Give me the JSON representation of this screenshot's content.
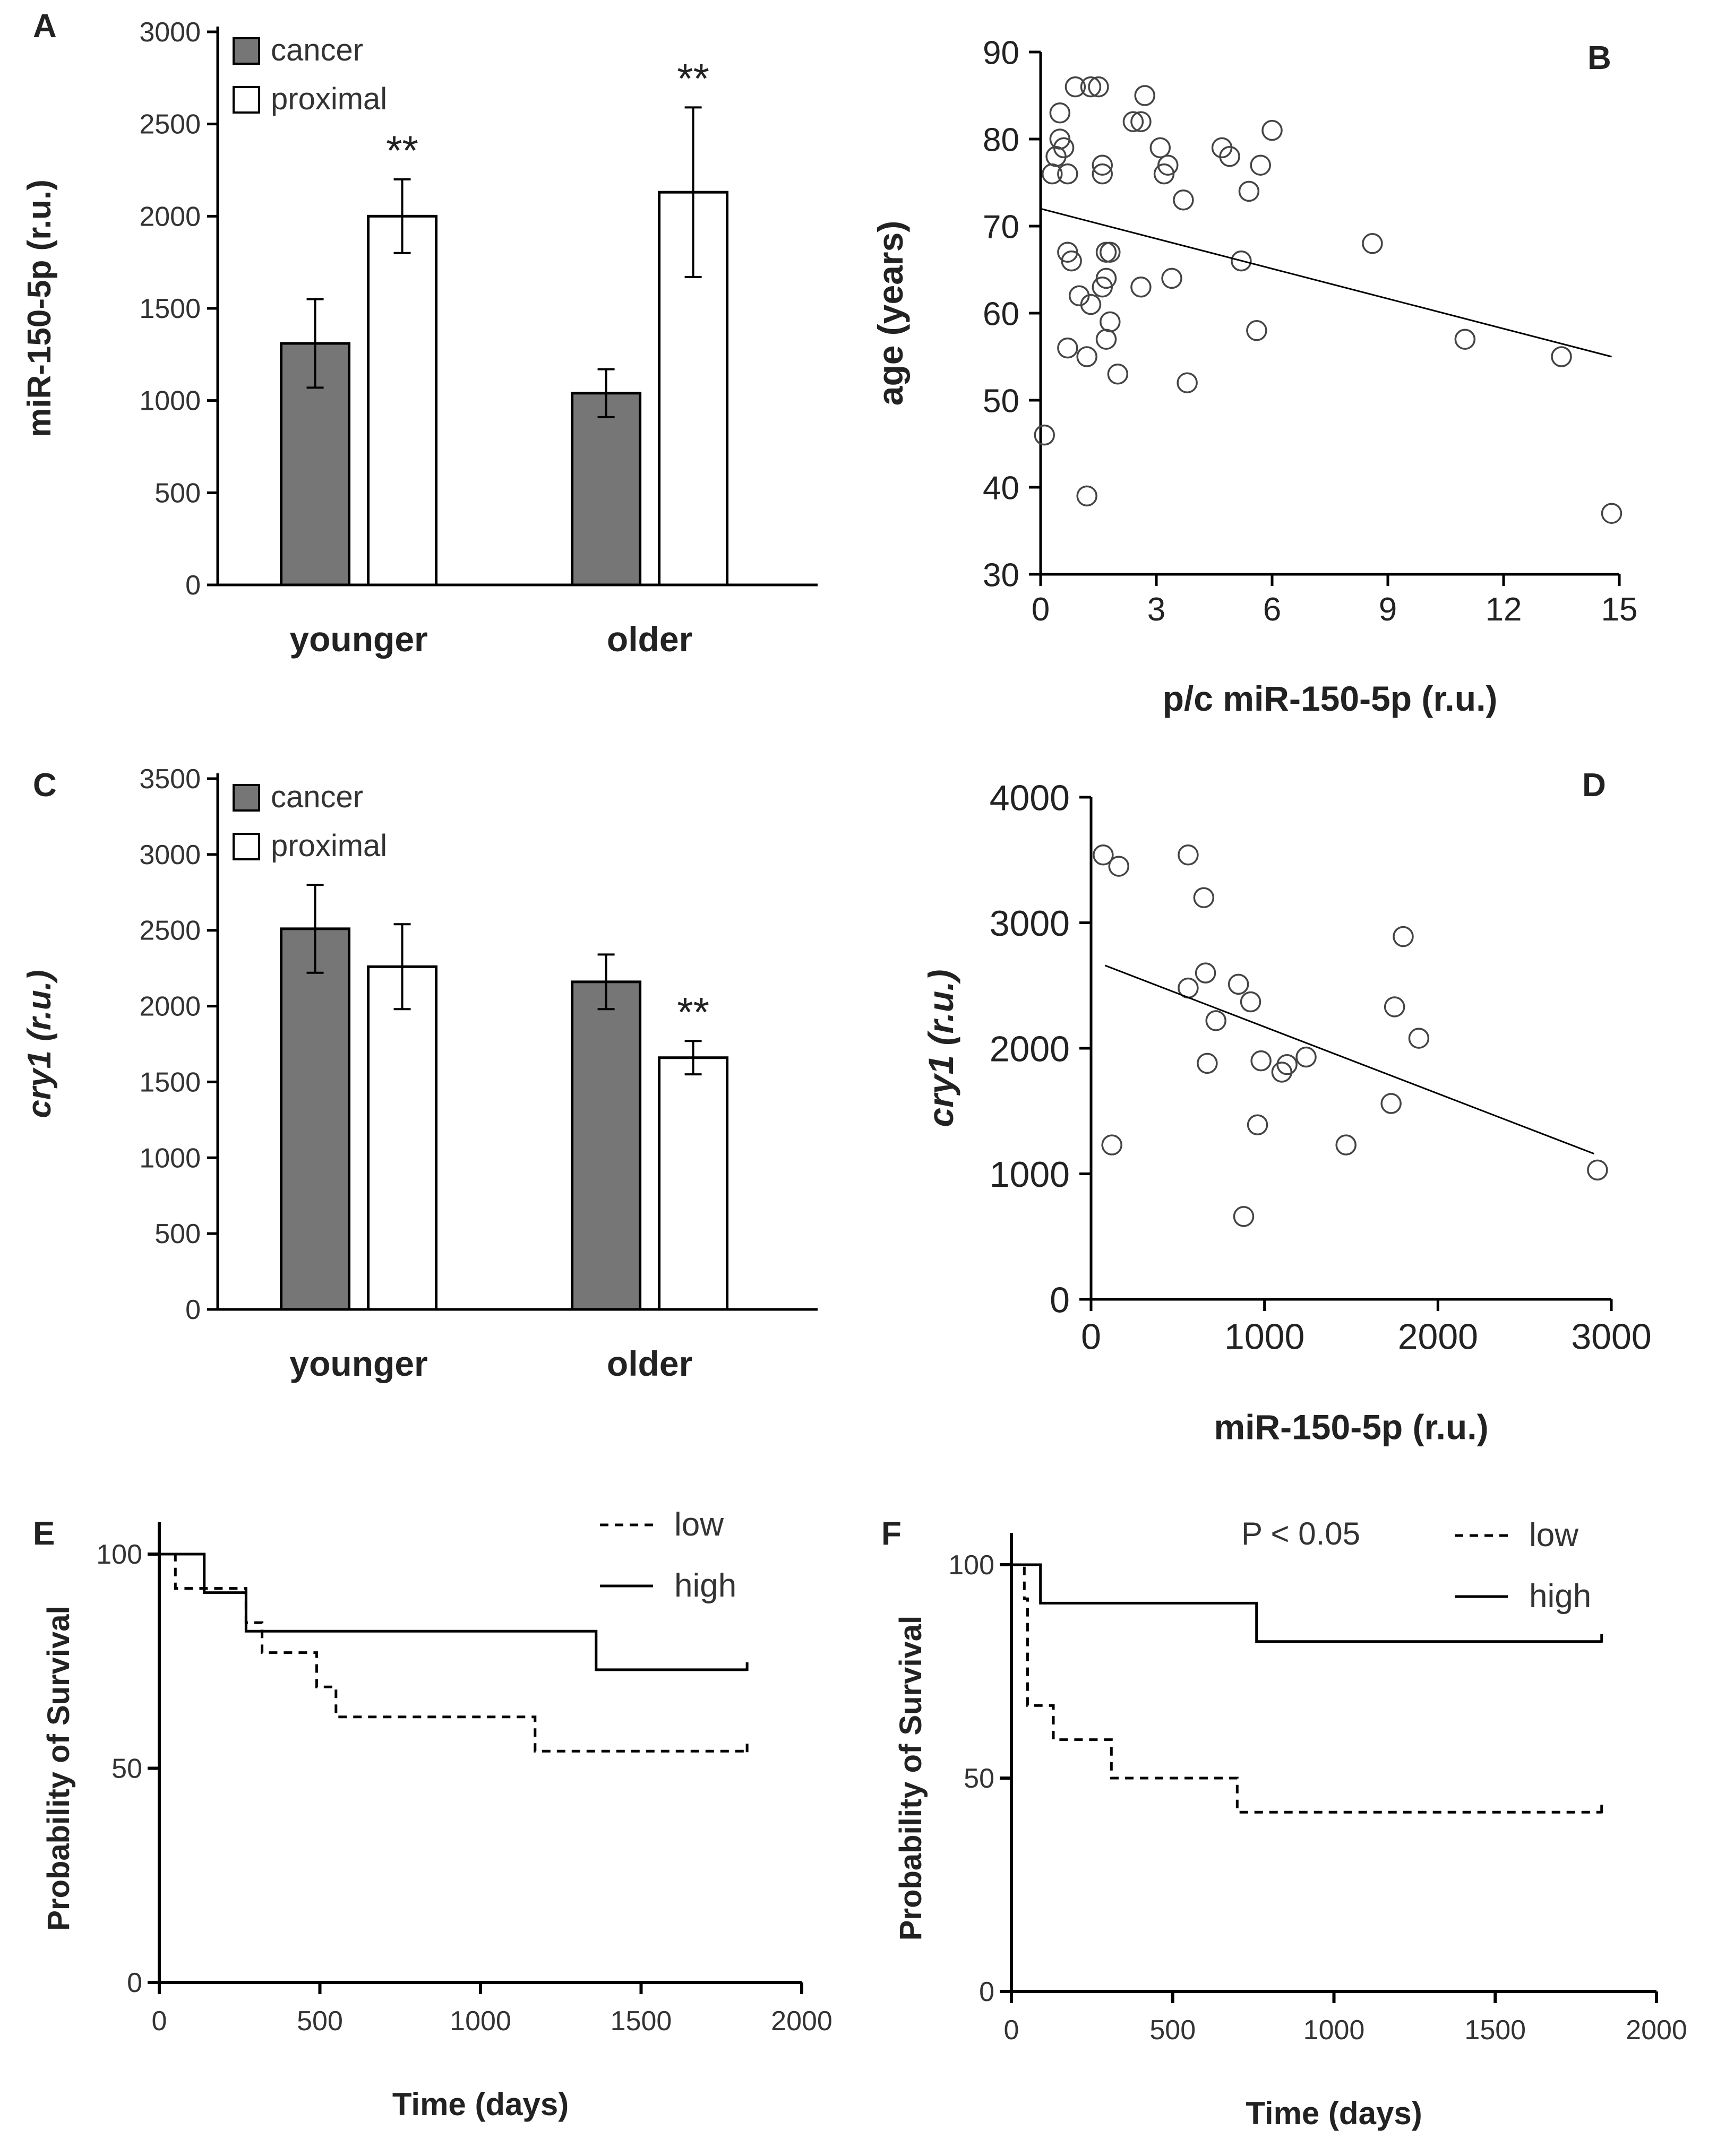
{
  "chart_data": [
    {
      "panel": "A",
      "type": "bar",
      "categories": [
        "younger",
        "older"
      ],
      "series": [
        {
          "name": "cancer",
          "color": "#767676",
          "values": [
            1310,
            1040
          ],
          "errors": [
            240,
            130
          ]
        },
        {
          "name": "proximal",
          "color": "#ffffff",
          "values": [
            2000,
            2130
          ],
          "errors": [
            200,
            460
          ]
        }
      ],
      "annotations": [
        {
          "category": "younger",
          "series": "proximal",
          "text": "**"
        },
        {
          "category": "older",
          "series": "proximal",
          "text": "**"
        }
      ],
      "ylabel": "miR-150-5p (r.u.)",
      "ylim": [
        0,
        3000
      ],
      "yticks": [
        0,
        500,
        1000,
        1500,
        2000,
        2500,
        3000
      ],
      "legend": "top-left"
    },
    {
      "panel": "B",
      "type": "scatter",
      "xlabel": "p/c miR-150-5p (r.u.)",
      "ylabel": "age  (years)",
      "xlim": [
        0,
        15
      ],
      "ylim": [
        30,
        90
      ],
      "xticks": [
        0,
        3,
        6,
        9,
        12,
        15
      ],
      "yticks": [
        30,
        40,
        50,
        60,
        70,
        80,
        90
      ],
      "points": [
        [
          0.9,
          86
        ],
        [
          1.3,
          86
        ],
        [
          1.5,
          86
        ],
        [
          0.5,
          83
        ],
        [
          2.7,
          85
        ],
        [
          0.5,
          80
        ],
        [
          0.6,
          79
        ],
        [
          0.4,
          78
        ],
        [
          0.3,
          76
        ],
        [
          0.7,
          76
        ],
        [
          1.6,
          77
        ],
        [
          1.6,
          76
        ],
        [
          2.4,
          82
        ],
        [
          2.6,
          82
        ],
        [
          3.1,
          79
        ],
        [
          3.3,
          77
        ],
        [
          3.2,
          76
        ],
        [
          3.7,
          73
        ],
        [
          4.7,
          79
        ],
        [
          4.9,
          78
        ],
        [
          5.4,
          74
        ],
        [
          5.7,
          77
        ],
        [
          6.0,
          81
        ],
        [
          0.7,
          67
        ],
        [
          0.8,
          66
        ],
        [
          1.7,
          67
        ],
        [
          1.8,
          67
        ],
        [
          1.7,
          64
        ],
        [
          1.6,
          63
        ],
        [
          2.6,
          63
        ],
        [
          3.4,
          64
        ],
        [
          5.2,
          66
        ],
        [
          1.0,
          62
        ],
        [
          1.3,
          61
        ],
        [
          1.8,
          59
        ],
        [
          1.7,
          57
        ],
        [
          0.7,
          56
        ],
        [
          1.2,
          55
        ],
        [
          2.0,
          53
        ],
        [
          3.8,
          52
        ],
        [
          5.6,
          58
        ],
        [
          8.6,
          68
        ],
        [
          11.0,
          57
        ],
        [
          13.5,
          55
        ],
        [
          0.1,
          46
        ],
        [
          1.2,
          39
        ],
        [
          14.8,
          37
        ]
      ],
      "trend": {
        "x": [
          0,
          14.8
        ],
        "y": [
          72,
          55
        ]
      }
    },
    {
      "panel": "C",
      "type": "bar",
      "categories": [
        "younger",
        "older"
      ],
      "series": [
        {
          "name": "cancer",
          "color": "#767676",
          "values": [
            2510,
            2160
          ],
          "errors": [
            290,
            180
          ]
        },
        {
          "name": "proximal",
          "color": "#ffffff",
          "values": [
            2260,
            1660
          ],
          "errors": [
            280,
            110
          ]
        }
      ],
      "annotations": [
        {
          "category": "older",
          "series": "proximal",
          "text": "**"
        }
      ],
      "ylabel": "cry1 (r.u.)",
      "ylim": [
        0,
        3500
      ],
      "yticks": [
        0,
        500,
        1000,
        1500,
        2000,
        2500,
        3000,
        3500
      ],
      "legend": "top-left"
    },
    {
      "panel": "D",
      "type": "scatter",
      "xlabel": "miR-150-5p (r.u.)",
      "ylabel": "cry1  (r.u.)",
      "xlim": [
        0,
        3000
      ],
      "ylim": [
        0,
        4000
      ],
      "xticks": [
        0,
        1000,
        2000,
        3000
      ],
      "yticks": [
        0,
        1000,
        2000,
        3000,
        4000
      ],
      "points": [
        [
          70,
          3540
        ],
        [
          160,
          3450
        ],
        [
          560,
          3540
        ],
        [
          650,
          3200
        ],
        [
          560,
          2480
        ],
        [
          660,
          2600
        ],
        [
          720,
          2220
        ],
        [
          850,
          2510
        ],
        [
          920,
          2370
        ],
        [
          670,
          1880
        ],
        [
          980,
          1900
        ],
        [
          1100,
          1810
        ],
        [
          1130,
          1870
        ],
        [
          1240,
          1930
        ],
        [
          960,
          1390
        ],
        [
          120,
          1230
        ],
        [
          880,
          660
        ],
        [
          1470,
          1230
        ],
        [
          1730,
          1560
        ],
        [
          1750,
          2330
        ],
        [
          1800,
          2890
        ],
        [
          1890,
          2080
        ],
        [
          2920,
          1030
        ]
      ],
      "trend": {
        "x": [
          80,
          2900
        ],
        "y": [
          2660,
          1160
        ]
      }
    },
    {
      "panel": "E",
      "type": "line",
      "xlabel": "Time (days)",
      "ylabel": "Probability of Survival",
      "xlim": [
        0,
        2000
      ],
      "ylim": [
        0,
        100
      ],
      "xticks": [
        0,
        500,
        1000,
        1500,
        2000
      ],
      "yticks": [
        0,
        50,
        100
      ],
      "legend": "top-right",
      "series": [
        {
          "name": "low",
          "style": "dashed",
          "x": [
            0,
            50,
            50,
            270,
            270,
            320,
            320,
            490,
            490,
            550,
            550,
            1170,
            1170,
            1830
          ],
          "y": [
            100,
            100,
            92,
            92,
            84,
            84,
            77,
            77,
            69,
            69,
            62,
            62,
            54,
            54
          ]
        },
        {
          "name": "high",
          "style": "solid",
          "x": [
            0,
            140,
            140,
            270,
            270,
            1360,
            1360,
            1830
          ],
          "y": [
            100,
            100,
            91,
            91,
            82,
            82,
            73,
            73
          ]
        }
      ]
    },
    {
      "panel": "F",
      "type": "line",
      "xlabel": "Time (days)",
      "ylabel": "Probability of Survival",
      "xlim": [
        0,
        2000
      ],
      "ylim": [
        0,
        100
      ],
      "xticks": [
        0,
        500,
        1000,
        1500,
        2000
      ],
      "yticks": [
        0,
        50,
        100
      ],
      "legend": "top-right",
      "annotation": "P < 0.05",
      "series": [
        {
          "name": "low",
          "style": "dashed",
          "x": [
            0,
            40,
            40,
            50,
            50,
            130,
            130,
            310,
            310,
            700,
            700,
            1830
          ],
          "y": [
            100,
            100,
            92,
            92,
            67,
            67,
            59,
            59,
            50,
            50,
            42,
            42
          ]
        },
        {
          "name": "high",
          "style": "solid",
          "x": [
            0,
            90,
            90,
            760,
            760,
            1830
          ],
          "y": [
            100,
            100,
            91,
            91,
            82,
            82
          ]
        }
      ]
    }
  ]
}
